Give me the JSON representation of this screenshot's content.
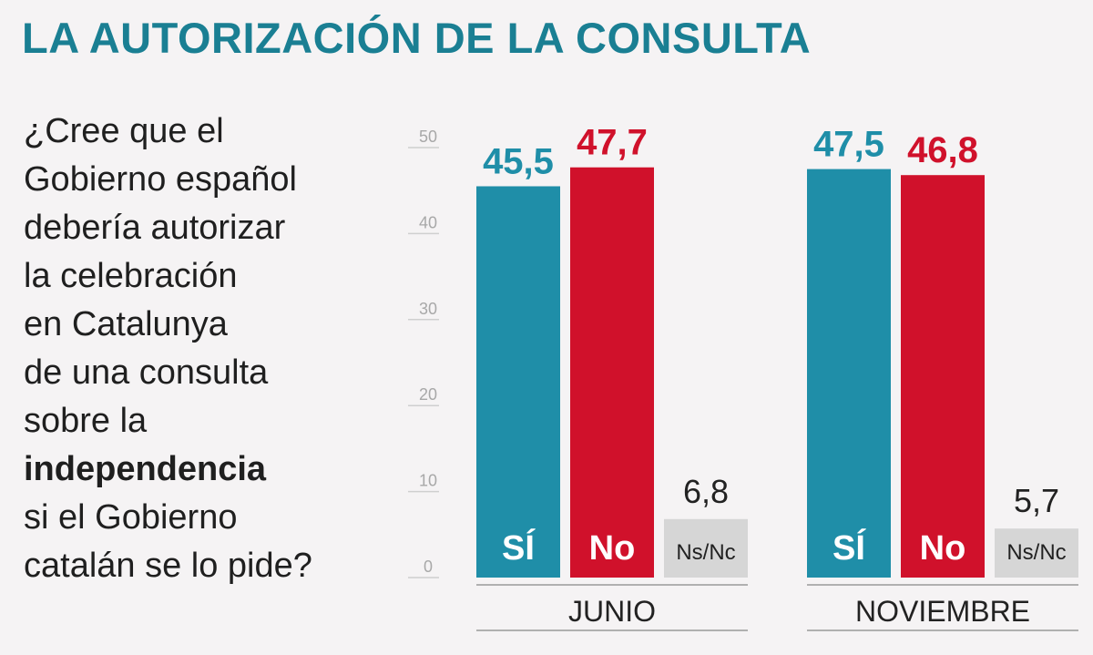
{
  "title": "LA AUTORIZACIÓN DE LA CONSULTA",
  "question_lines": [
    {
      "text": "¿Cree que el",
      "bold": false
    },
    {
      "text": "Gobierno español",
      "bold": false
    },
    {
      "text": "debería autorizar",
      "bold": false
    },
    {
      "text": "la celebración",
      "bold": false
    },
    {
      "text": "en Catalunya",
      "bold": false
    },
    {
      "text": "de una consulta",
      "bold": false
    },
    {
      "text": "sobre la",
      "bold": false
    },
    {
      "text": "independencia",
      "bold": true
    },
    {
      "text": "si el Gobierno",
      "bold": false
    },
    {
      "text": "catalán se lo pide?",
      "bold": false
    }
  ],
  "colors": {
    "si": "#1f8ea8",
    "no": "#d0112b",
    "nsnc": "#d6d6d6",
    "title": "#1a7f93"
  },
  "chart_data": {
    "type": "bar",
    "title": "LA AUTORIZACIÓN DE LA CONSULTA",
    "ylim": [
      0,
      50
    ],
    "yticks": [
      0,
      10,
      20,
      30,
      40,
      50
    ],
    "categories": [
      "JUNIO",
      "NOVIEMBRE"
    ],
    "series": [
      {
        "name": "Sí",
        "values": [
          45.5,
          47.5
        ],
        "labels": [
          "45,5",
          "47,5"
        ],
        "color": "#1f8ea8"
      },
      {
        "name": "No",
        "values": [
          47.7,
          46.8
        ],
        "labels": [
          "47,7",
          "46,8"
        ],
        "color": "#d0112b"
      },
      {
        "name": "Ns/Nc",
        "values": [
          6.8,
          5.7
        ],
        "labels": [
          "6,8",
          "5,7"
        ],
        "color": "#d6d6d6"
      }
    ]
  }
}
